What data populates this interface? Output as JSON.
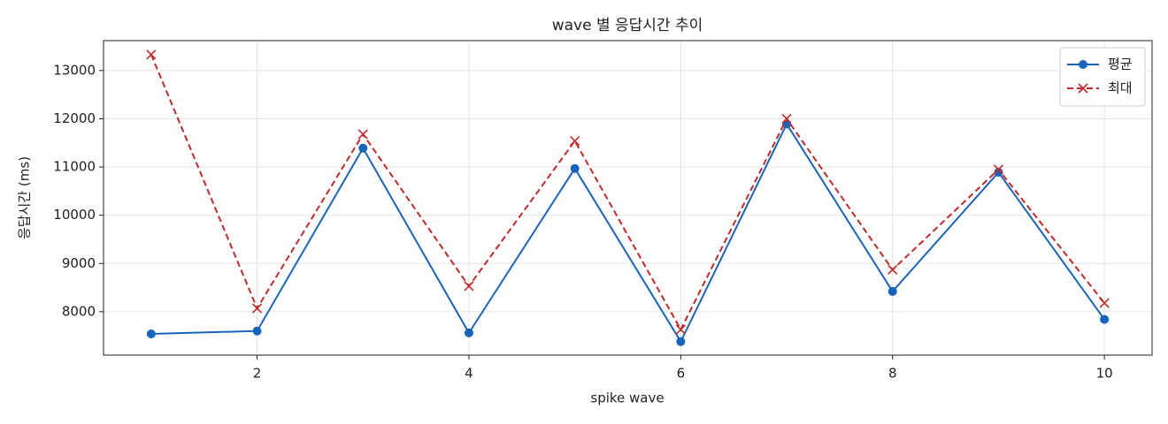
{
  "chart_data": {
    "type": "line",
    "title": "wave 별 응답시간 추이",
    "x_label": "spike wave",
    "y_label": "응답시간 (ms)",
    "x": [
      1,
      2,
      3,
      4,
      5,
      6,
      7,
      8,
      9,
      10
    ],
    "series": [
      {
        "name": "평균",
        "color": "#1565c0",
        "linestyle": "solid",
        "marker": "circle",
        "values": [
          7540,
          7600,
          11390,
          7560,
          10970,
          7380,
          11890,
          8420,
          10890,
          7840
        ]
      },
      {
        "name": "최대",
        "color": "#c62828",
        "linestyle": "dashed",
        "marker": "x",
        "values": [
          13330,
          8070,
          11680,
          8530,
          11540,
          7630,
          12000,
          8870,
          10950,
          8180
        ]
      }
    ],
    "xlim": [
      0.55,
      10.45
    ],
    "ylim": [
      7100,
      13620
    ],
    "xticks": [
      2,
      4,
      6,
      8,
      10
    ],
    "yticks": [
      8000,
      9000,
      10000,
      11000,
      12000,
      13000
    ],
    "grid": true,
    "legend": "upper right"
  }
}
